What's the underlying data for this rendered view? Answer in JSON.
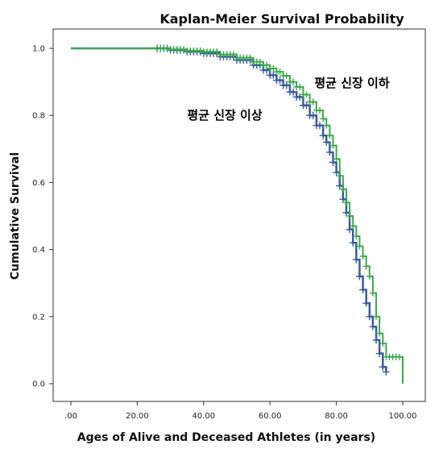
{
  "chart_data": {
    "type": "line",
    "title": "Kaplan-Meier Survival Probability",
    "xlabel": "Ages of Alive and Deceased Athletes (in years)",
    "ylabel": "Cumulative Survival",
    "xlim": [
      0,
      100
    ],
    "ylim": [
      0,
      1
    ],
    "x_ticks": [
      0,
      20,
      40,
      60,
      80,
      100
    ],
    "x_tick_labels": [
      ".00",
      "20.00",
      "40.00",
      "60.00",
      "80.00",
      "100.00"
    ],
    "y_ticks": [
      0,
      0.2,
      0.4,
      0.6,
      0.8,
      1.0
    ],
    "y_tick_labels": [
      "0.0",
      "0.2",
      "0.4",
      "0.6",
      "0.8",
      "1.0"
    ],
    "grid": false,
    "annotations": [
      {
        "text": "평균 신장 이하",
        "series_index": 1
      },
      {
        "text": "평균 신장 이상",
        "series_index": 0
      }
    ],
    "series": [
      {
        "color": "#3A5BA0",
        "points": [
          [
            0,
            1.0
          ],
          [
            26,
            1.0
          ],
          [
            30,
            0.995
          ],
          [
            35,
            0.99
          ],
          [
            40,
            0.985
          ],
          [
            45,
            0.975
          ],
          [
            50,
            0.965
          ],
          [
            55,
            0.95
          ],
          [
            58,
            0.935
          ],
          [
            60,
            0.92
          ],
          [
            62,
            0.905
          ],
          [
            64,
            0.89
          ],
          [
            66,
            0.87
          ],
          [
            68,
            0.855
          ],
          [
            70,
            0.83
          ],
          [
            72,
            0.8
          ],
          [
            74,
            0.77
          ],
          [
            76,
            0.74
          ],
          [
            77,
            0.72
          ],
          [
            78,
            0.69
          ],
          [
            79,
            0.66
          ],
          [
            80,
            0.63
          ],
          [
            81,
            0.59
          ],
          [
            82,
            0.55
          ],
          [
            83,
            0.51
          ],
          [
            84,
            0.46
          ],
          [
            85,
            0.42
          ],
          [
            86,
            0.37
          ],
          [
            87,
            0.32
          ],
          [
            88,
            0.28
          ],
          [
            89,
            0.24
          ],
          [
            90,
            0.2
          ],
          [
            91,
            0.17
          ],
          [
            92,
            0.13
          ],
          [
            93,
            0.09
          ],
          [
            94,
            0.05
          ],
          [
            95,
            0.035
          ]
        ],
        "censor_x": [
          26,
          27,
          28,
          29,
          30,
          31,
          32,
          33,
          34,
          35,
          36,
          37,
          38,
          39,
          40,
          41,
          42,
          43,
          44,
          45,
          46,
          47,
          48,
          49,
          50,
          51,
          52,
          53,
          54,
          55,
          56,
          57,
          58,
          59,
          60,
          61,
          62,
          63,
          64,
          65,
          66,
          67,
          68,
          69,
          70,
          71,
          72,
          73,
          74,
          75,
          76,
          77,
          78,
          79,
          80,
          81,
          82,
          83,
          84,
          85,
          86,
          87,
          88,
          89,
          90,
          91,
          92,
          93,
          94,
          95
        ]
      },
      {
        "color": "#3BA94A",
        "points": [
          [
            0,
            1.0
          ],
          [
            26,
            1.0
          ],
          [
            30,
            0.997
          ],
          [
            35,
            0.993
          ],
          [
            40,
            0.99
          ],
          [
            45,
            0.982
          ],
          [
            50,
            0.972
          ],
          [
            55,
            0.96
          ],
          [
            58,
            0.95
          ],
          [
            60,
            0.94
          ],
          [
            62,
            0.93
          ],
          [
            64,
            0.918
          ],
          [
            66,
            0.9
          ],
          [
            68,
            0.885
          ],
          [
            70,
            0.862
          ],
          [
            72,
            0.84
          ],
          [
            74,
            0.815
          ],
          [
            76,
            0.79
          ],
          [
            77,
            0.77
          ],
          [
            78,
            0.74
          ],
          [
            79,
            0.71
          ],
          [
            80,
            0.67
          ],
          [
            81,
            0.62
          ],
          [
            82,
            0.58
          ],
          [
            83,
            0.54
          ],
          [
            84,
            0.5
          ],
          [
            85,
            0.47
          ],
          [
            86,
            0.44
          ],
          [
            87,
            0.41
          ],
          [
            88,
            0.38
          ],
          [
            89,
            0.35
          ],
          [
            90,
            0.32
          ],
          [
            91,
            0.27
          ],
          [
            92,
            0.2
          ],
          [
            93,
            0.15
          ],
          [
            94,
            0.12
          ],
          [
            95,
            0.08
          ],
          [
            99,
            0.08
          ],
          [
            100,
            0.0
          ]
        ],
        "censor_x": [
          26,
          27,
          28,
          29,
          30,
          31,
          32,
          33,
          34,
          35,
          36,
          37,
          38,
          39,
          40,
          41,
          42,
          43,
          44,
          45,
          46,
          47,
          48,
          49,
          50,
          51,
          52,
          53,
          54,
          55,
          56,
          57,
          58,
          59,
          60,
          61,
          62,
          63,
          64,
          65,
          66,
          67,
          68,
          69,
          70,
          71,
          72,
          73,
          74,
          75,
          76,
          77,
          78,
          79,
          80,
          81,
          82,
          83,
          84,
          85,
          86,
          87,
          88,
          89,
          90,
          91,
          92,
          93,
          94,
          95,
          96,
          97,
          98,
          99
        ]
      }
    ]
  }
}
